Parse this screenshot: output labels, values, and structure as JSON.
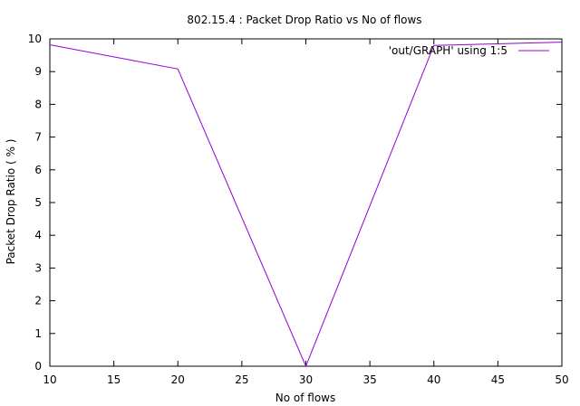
{
  "chart_data": {
    "type": "line",
    "title": "802.15.4 : Packet Drop Ratio vs No of flows",
    "xlabel": "No of flows",
    "ylabel": "Packet Drop Ratio ( % )",
    "xlim": [
      10,
      50
    ],
    "ylim": [
      0,
      10
    ],
    "x_ticks": [
      10,
      15,
      20,
      25,
      30,
      35,
      40,
      45,
      50
    ],
    "y_ticks": [
      0,
      1,
      2,
      3,
      4,
      5,
      6,
      7,
      8,
      9,
      10
    ],
    "grid": false,
    "legend_position": "top-right",
    "series": [
      {
        "name": "'out/GRAPH' using 1:5",
        "color": "#9400d3",
        "x": [
          10,
          20,
          30,
          40,
          50
        ],
        "y": [
          9.82,
          9.08,
          0.0,
          9.8,
          9.9
        ]
      }
    ]
  }
}
